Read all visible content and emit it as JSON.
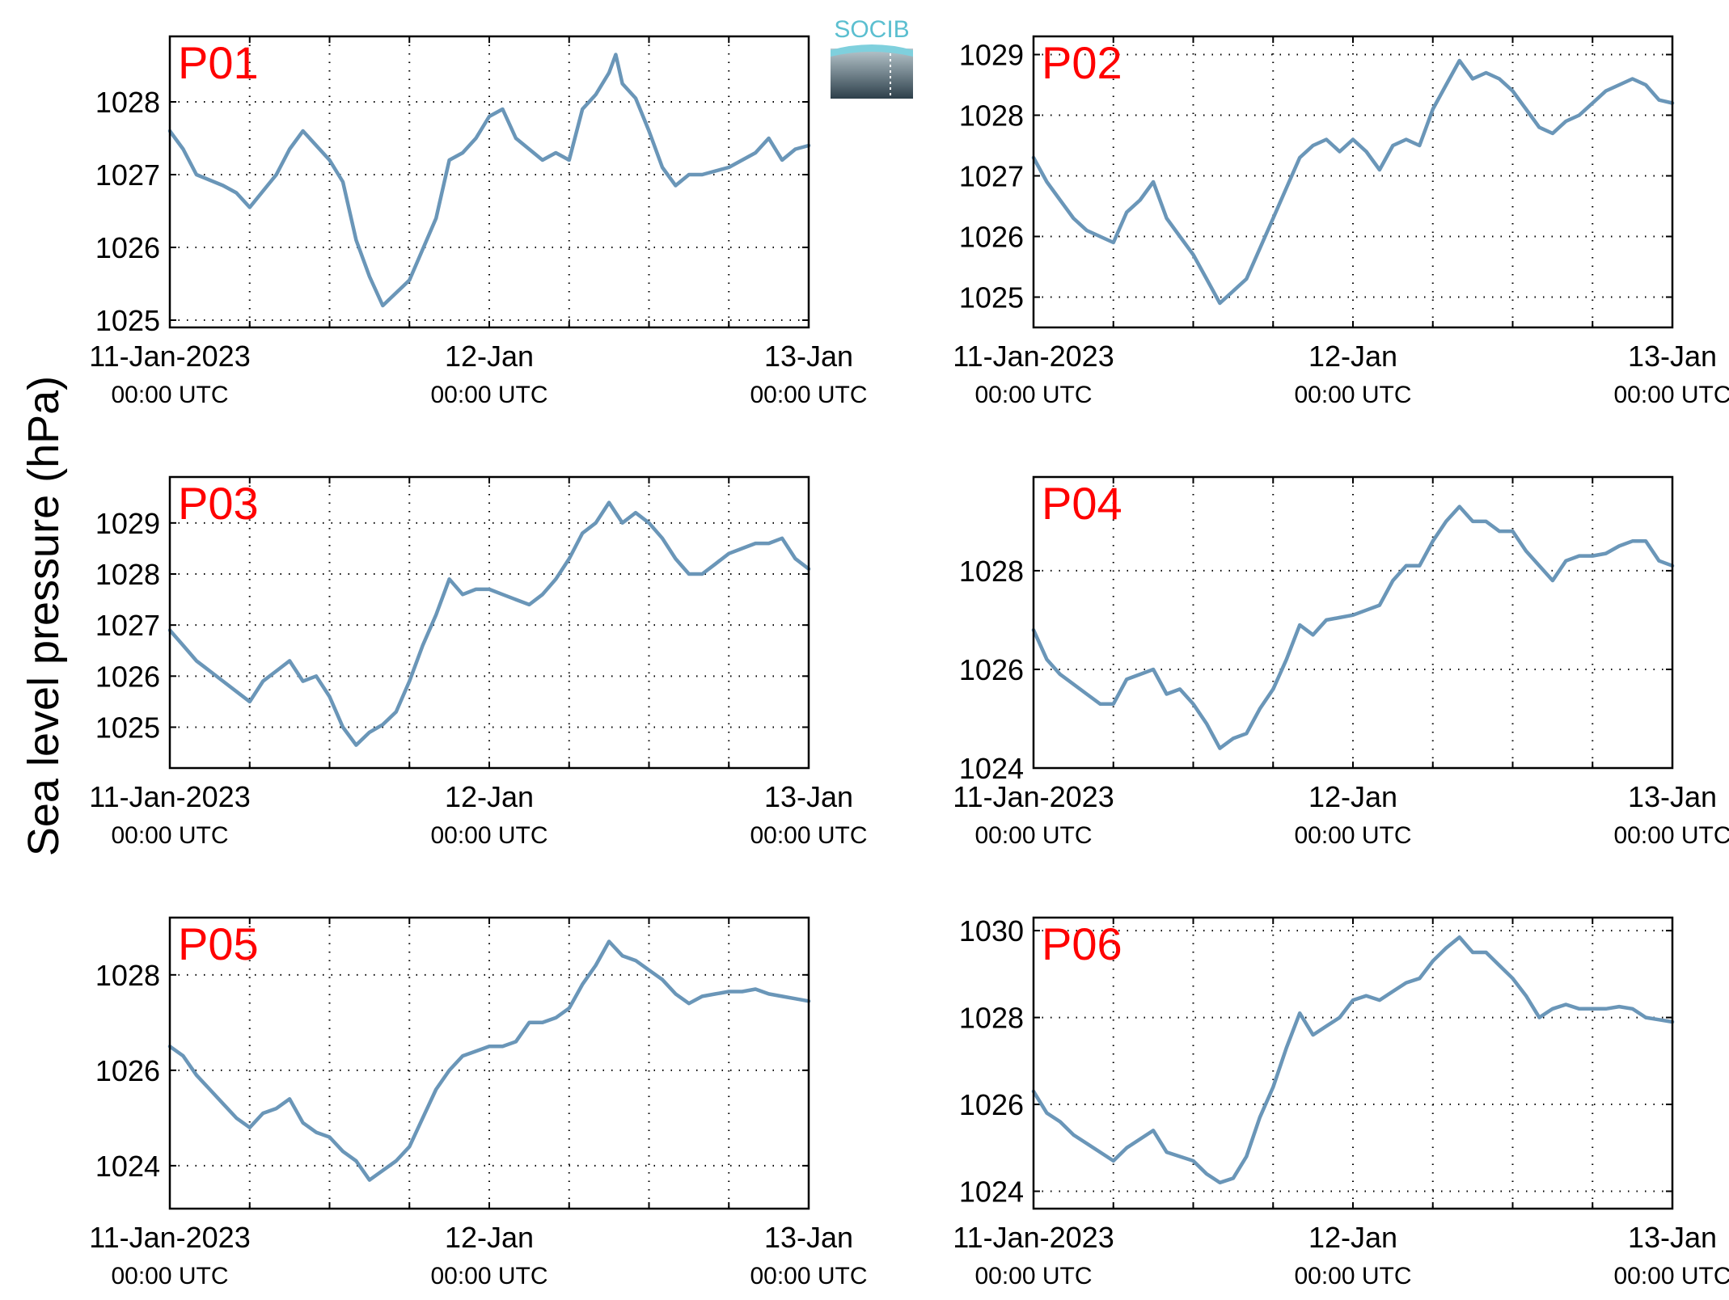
{
  "figure": {
    "ylabel": "Sea level pressure (hPa)",
    "logo_text": "SOCIB"
  },
  "style": {
    "line_color": "#6a96b8",
    "panel_label_color": "#ff0000",
    "axis_color": "#000000",
    "grid_style": "dotted"
  },
  "chart_data": [
    {
      "type": "line",
      "panel_label": "P01",
      "grid": true,
      "xlim": [
        0,
        48
      ],
      "ylim": [
        1024.9,
        1028.9
      ],
      "yticks": [
        1025,
        1026,
        1027,
        1028
      ],
      "xticks": [
        {
          "hours": 0,
          "line1": "11-Jan-2023",
          "line2": "00:00 UTC"
        },
        {
          "hours": 24,
          "line1": "12-Jan",
          "line2": "00:00 UTC"
        },
        {
          "hours": 48,
          "line1": "13-Jan",
          "line2": "00:00 UTC"
        }
      ],
      "series": [
        {
          "x": [
            0,
            1,
            2,
            4,
            5,
            6,
            8,
            9,
            10,
            12,
            13,
            14,
            15,
            16,
            18,
            20,
            21,
            22,
            23,
            24,
            25,
            26,
            28,
            29,
            30,
            31,
            32,
            33,
            33.5,
            34,
            35,
            36,
            37,
            38,
            39,
            40,
            42,
            44,
            45,
            46,
            47,
            48
          ],
          "y": [
            1027.6,
            1027.35,
            1027.0,
            1026.85,
            1026.75,
            1026.55,
            1027.0,
            1027.35,
            1027.6,
            1027.2,
            1026.9,
            1026.1,
            1025.6,
            1025.2,
            1025.55,
            1026.4,
            1027.2,
            1027.3,
            1027.5,
            1027.8,
            1027.9,
            1027.5,
            1027.2,
            1027.3,
            1027.2,
            1027.9,
            1028.1,
            1028.4,
            1028.65,
            1028.25,
            1028.05,
            1027.6,
            1027.1,
            1026.85,
            1027.0,
            1027.0,
            1027.1,
            1027.3,
            1027.5,
            1027.2,
            1027.35,
            1027.4
          ]
        }
      ]
    },
    {
      "type": "line",
      "panel_label": "P02",
      "grid": true,
      "xlim": [
        0,
        48
      ],
      "ylim": [
        1024.5,
        1029.3
      ],
      "yticks": [
        1025,
        1026,
        1027,
        1028,
        1029
      ],
      "xticks": [
        {
          "hours": 0,
          "line1": "11-Jan-2023",
          "line2": "00:00 UTC"
        },
        {
          "hours": 24,
          "line1": "12-Jan",
          "line2": "00:00 UTC"
        },
        {
          "hours": 48,
          "line1": "13-Jan",
          "line2": "00:00 UTC"
        }
      ],
      "series": [
        {
          "x": [
            0,
            1,
            2,
            3,
            4,
            5,
            6,
            7,
            8,
            9,
            10,
            11,
            12,
            13,
            14,
            15,
            16,
            17,
            18,
            19,
            20,
            21,
            22,
            23,
            24,
            25,
            26,
            27,
            28,
            29,
            30,
            31,
            32,
            33,
            34,
            35,
            36,
            37,
            38,
            39,
            40,
            41,
            42,
            43,
            44,
            45,
            46,
            47,
            48
          ],
          "y": [
            1027.3,
            1026.9,
            1026.6,
            1026.3,
            1026.1,
            1026.0,
            1025.9,
            1026.4,
            1026.6,
            1026.9,
            1026.3,
            1026.0,
            1025.7,
            1025.3,
            1024.9,
            1025.1,
            1025.3,
            1025.8,
            1026.3,
            1026.8,
            1027.3,
            1027.5,
            1027.6,
            1027.4,
            1027.6,
            1027.4,
            1027.1,
            1027.5,
            1027.6,
            1027.5,
            1028.1,
            1028.5,
            1028.9,
            1028.6,
            1028.7,
            1028.6,
            1028.4,
            1028.1,
            1027.8,
            1027.7,
            1027.9,
            1028.0,
            1028.2,
            1028.4,
            1028.5,
            1028.6,
            1028.5,
            1028.25,
            1028.2
          ]
        }
      ]
    },
    {
      "type": "line",
      "panel_label": "P03",
      "grid": true,
      "xlim": [
        0,
        48
      ],
      "ylim": [
        1024.2,
        1029.9
      ],
      "yticks": [
        1025,
        1026,
        1027,
        1028,
        1029
      ],
      "xticks": [
        {
          "hours": 0,
          "line1": "11-Jan-2023",
          "line2": "00:00 UTC"
        },
        {
          "hours": 24,
          "line1": "12-Jan",
          "line2": "00:00 UTC"
        },
        {
          "hours": 48,
          "line1": "13-Jan",
          "line2": "00:00 UTC"
        }
      ],
      "series": [
        {
          "x": [
            0,
            1,
            2,
            3,
            4,
            5,
            6,
            7,
            8,
            9,
            10,
            11,
            12,
            13,
            14,
            15,
            16,
            17,
            18,
            19,
            20,
            21,
            22,
            23,
            24,
            25,
            26,
            27,
            28,
            29,
            30,
            31,
            32,
            33,
            34,
            35,
            36,
            37,
            38,
            39,
            40,
            41,
            42,
            43,
            44,
            45,
            46,
            47,
            48
          ],
          "y": [
            1026.9,
            1026.6,
            1026.3,
            1026.1,
            1025.9,
            1025.7,
            1025.5,
            1025.9,
            1026.1,
            1026.3,
            1025.9,
            1026.0,
            1025.6,
            1025.0,
            1024.65,
            1024.9,
            1025.05,
            1025.3,
            1025.9,
            1026.6,
            1027.2,
            1027.9,
            1027.6,
            1027.7,
            1027.7,
            1027.6,
            1027.5,
            1027.4,
            1027.6,
            1027.9,
            1028.3,
            1028.8,
            1029.0,
            1029.4,
            1029.0,
            1029.2,
            1029.0,
            1028.7,
            1028.3,
            1028.0,
            1028.0,
            1028.2,
            1028.4,
            1028.5,
            1028.6,
            1028.6,
            1028.7,
            1028.3,
            1028.1
          ]
        }
      ]
    },
    {
      "type": "line",
      "panel_label": "P04",
      "grid": true,
      "xlim": [
        0,
        48
      ],
      "ylim": [
        1024.0,
        1029.9
      ],
      "yticks": [
        1024,
        1026,
        1028
      ],
      "xticks": [
        {
          "hours": 0,
          "line1": "11-Jan-2023",
          "line2": "00:00 UTC"
        },
        {
          "hours": 24,
          "line1": "12-Jan",
          "line2": "00:00 UTC"
        },
        {
          "hours": 48,
          "line1": "13-Jan",
          "line2": "00:00 UTC"
        }
      ],
      "series": [
        {
          "x": [
            0,
            1,
            2,
            3,
            4,
            5,
            6,
            7,
            8,
            9,
            10,
            11,
            12,
            13,
            14,
            15,
            16,
            17,
            18,
            19,
            20,
            21,
            22,
            23,
            24,
            25,
            26,
            27,
            28,
            29,
            30,
            31,
            32,
            33,
            34,
            35,
            36,
            37,
            38,
            39,
            40,
            41,
            42,
            43,
            44,
            45,
            46,
            47,
            48
          ],
          "y": [
            1026.8,
            1026.2,
            1025.9,
            1025.7,
            1025.5,
            1025.3,
            1025.3,
            1025.8,
            1025.9,
            1026.0,
            1025.5,
            1025.6,
            1025.3,
            1024.9,
            1024.4,
            1024.6,
            1024.7,
            1025.2,
            1025.6,
            1026.2,
            1026.9,
            1026.7,
            1027.0,
            1027.05,
            1027.1,
            1027.2,
            1027.3,
            1027.8,
            1028.1,
            1028.1,
            1028.6,
            1029.0,
            1029.3,
            1029.0,
            1029.0,
            1028.8,
            1028.8,
            1028.4,
            1028.1,
            1027.8,
            1028.2,
            1028.3,
            1028.3,
            1028.35,
            1028.5,
            1028.6,
            1028.6,
            1028.2,
            1028.1
          ]
        }
      ]
    },
    {
      "type": "line",
      "panel_label": "P05",
      "grid": true,
      "xlim": [
        0,
        48
      ],
      "ylim": [
        1023.1,
        1029.2
      ],
      "yticks": [
        1024,
        1026,
        1028
      ],
      "xticks": [
        {
          "hours": 0,
          "line1": "11-Jan-2023",
          "line2": "00:00 UTC"
        },
        {
          "hours": 24,
          "line1": "12-Jan",
          "line2": "00:00 UTC"
        },
        {
          "hours": 48,
          "line1": "13-Jan",
          "line2": "00:00 UTC"
        }
      ],
      "series": [
        {
          "x": [
            0,
            1,
            2,
            3,
            4,
            5,
            6,
            7,
            8,
            9,
            10,
            11,
            12,
            13,
            14,
            15,
            16,
            17,
            18,
            19,
            20,
            21,
            22,
            23,
            24,
            25,
            26,
            27,
            28,
            29,
            30,
            31,
            32,
            33,
            34,
            35,
            36,
            37,
            38,
            39,
            40,
            41,
            42,
            43,
            44,
            45,
            46,
            47,
            48
          ],
          "y": [
            1026.5,
            1026.3,
            1025.9,
            1025.6,
            1025.3,
            1025.0,
            1024.8,
            1025.1,
            1025.2,
            1025.4,
            1024.9,
            1024.7,
            1024.6,
            1024.3,
            1024.1,
            1023.7,
            1023.9,
            1024.1,
            1024.4,
            1025.0,
            1025.6,
            1026.0,
            1026.3,
            1026.4,
            1026.5,
            1026.5,
            1026.6,
            1027.0,
            1027.0,
            1027.1,
            1027.3,
            1027.8,
            1028.2,
            1028.7,
            1028.4,
            1028.3,
            1028.1,
            1027.9,
            1027.6,
            1027.4,
            1027.55,
            1027.6,
            1027.65,
            1027.65,
            1027.7,
            1027.6,
            1027.55,
            1027.5,
            1027.45
          ]
        }
      ]
    },
    {
      "type": "line",
      "panel_label": "P06",
      "grid": true,
      "xlim": [
        0,
        48
      ],
      "ylim": [
        1023.6,
        1030.3
      ],
      "yticks": [
        1024,
        1026,
        1028,
        1030
      ],
      "xticks": [
        {
          "hours": 0,
          "line1": "11-Jan-2023",
          "line2": "00:00 UTC"
        },
        {
          "hours": 24,
          "line1": "12-Jan",
          "line2": "00:00 UTC"
        },
        {
          "hours": 48,
          "line1": "13-Jan",
          "line2": "00:00 UTC"
        }
      ],
      "series": [
        {
          "x": [
            0,
            1,
            2,
            3,
            4,
            5,
            6,
            7,
            8,
            9,
            10,
            11,
            12,
            13,
            14,
            15,
            16,
            17,
            18,
            19,
            20,
            21,
            22,
            23,
            24,
            25,
            26,
            27,
            28,
            29,
            30,
            31,
            32,
            33,
            34,
            35,
            36,
            37,
            38,
            39,
            40,
            41,
            42,
            43,
            44,
            45,
            46,
            47,
            48
          ],
          "y": [
            1026.3,
            1025.8,
            1025.6,
            1025.3,
            1025.1,
            1024.9,
            1024.7,
            1025.0,
            1025.2,
            1025.4,
            1024.9,
            1024.8,
            1024.7,
            1024.4,
            1024.2,
            1024.3,
            1024.8,
            1025.7,
            1026.4,
            1027.3,
            1028.1,
            1027.6,
            1027.8,
            1028.0,
            1028.4,
            1028.5,
            1028.4,
            1028.6,
            1028.8,
            1028.9,
            1029.3,
            1029.6,
            1029.85,
            1029.5,
            1029.5,
            1029.2,
            1028.9,
            1028.5,
            1028.0,
            1028.2,
            1028.3,
            1028.2,
            1028.2,
            1028.2,
            1028.25,
            1028.2,
            1028.0,
            1027.95,
            1027.9
          ]
        }
      ]
    }
  ]
}
